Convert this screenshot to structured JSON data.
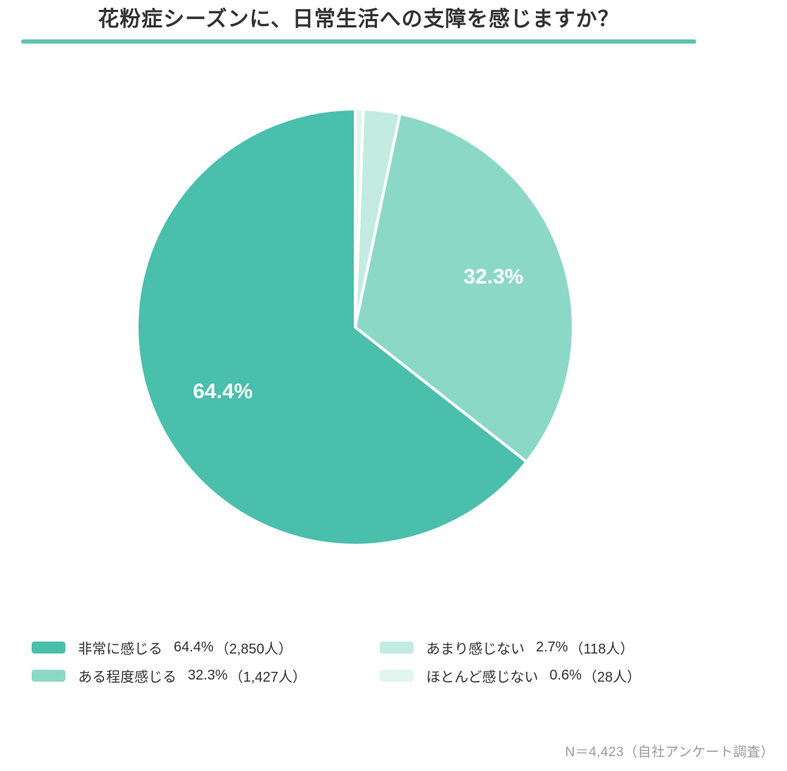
{
  "title": "花粉症シーズンに、日常生活への支障を感じますか？",
  "accent_color": "#5fc4b2",
  "footer": "N＝4,423（自社アンケート調査）",
  "chart_data": {
    "type": "pie",
    "title": "花粉症シーズンに、日常生活への支障を感じますか？",
    "total_n": "4,423",
    "source_note": "自社アンケート調査",
    "start_angle": "top",
    "clockwise_order_from_top": [
      "ほとんど感じない",
      "あまり感じない",
      "ある程度感じる",
      "非常に感じる"
    ],
    "legend_position": "bottom",
    "slices": [
      {
        "key": "hijou-ni-kanjiru",
        "label": "非常に感じる",
        "percent": 64.4,
        "count": 2850,
        "color": "#4abfab",
        "show_label": true
      },
      {
        "key": "aru-teido-kanjiru",
        "label": "ある程度感じる",
        "percent": 32.3,
        "count": 1427,
        "color": "#8cd8c7",
        "show_label": true
      },
      {
        "key": "amari-kanjinai",
        "label": "あまり感じない",
        "percent": 2.7,
        "count": 118,
        "color": "#c3ebe1",
        "show_label": false
      },
      {
        "key": "hotondo-kanjinai",
        "label": "ほとんど感じない",
        "percent": 0.6,
        "count": 28,
        "color": "#e2f5f0",
        "show_label": false
      }
    ],
    "legend": [
      {
        "label": "非常に感じる",
        "percent_text": "64.4%",
        "count_text": "（2,850人）",
        "color": "#4abfab"
      },
      {
        "label": "ある程度感じる",
        "percent_text": "32.3%",
        "count_text": "（1,427人）",
        "color": "#8cd8c7"
      },
      {
        "label": "あまり感じない",
        "percent_text": "2.7%",
        "count_text": "（118人）",
        "color": "#c3ebe1"
      },
      {
        "label": "ほとんど感じない",
        "percent_text": "0.6%",
        "count_text": "（28人）",
        "color": "#e2f5f0"
      }
    ]
  }
}
